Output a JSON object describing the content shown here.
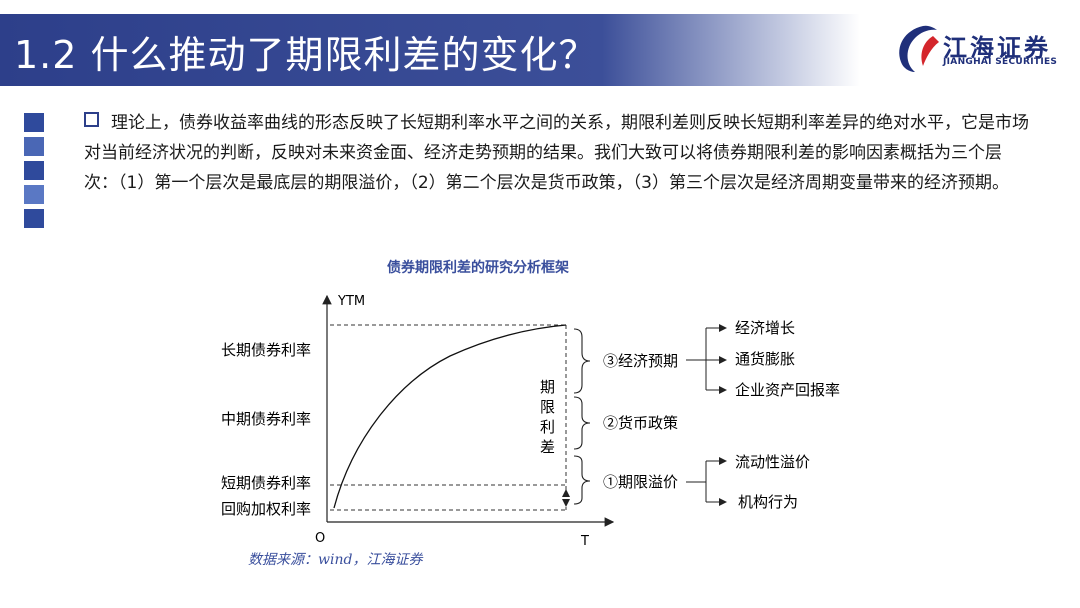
{
  "header": {
    "title": "1.2 什么推动了期限利差的变化？"
  },
  "logo": {
    "cn": "江海证券",
    "en": "JIANGHAI SECURITIES"
  },
  "intro": "理论上，债券收益率曲线的形态反映了长短期利率水平之间的关系，期限利差则反映长短期利率差异的绝对水平，它是市场对当前经济状况的判断，反映对未来资金面、经济走势预期的结果。我们大致可以将债券期限利差的影响因素概括为三个层次：（1）第一个层次是最底层的期限溢价，（2）第二个层次是货币政策，（3）第三个层次是经济周期变量带来的经济预期。",
  "figure": {
    "title": "债券期限利差的研究分析框架",
    "source": "数据来源：wind，江海证券",
    "axis": {
      "y_label": "YTM",
      "origin": "O",
      "x_label": "T"
    },
    "rates": {
      "long": "长期债券利率",
      "mid": "中期债券利率",
      "short": "短期债券利率",
      "repo": "回购加权利率"
    },
    "spread_label": [
      "期",
      "限",
      "利",
      "差"
    ],
    "factors": {
      "econ": "③经济预期",
      "policy": "②货币政策",
      "premium": "①期限溢价"
    },
    "econ_items": [
      "经济增长",
      "通货膨胀",
      "企业资产回报率"
    ],
    "premium_items": [
      "流动性溢价",
      "机构行为"
    ]
  }
}
